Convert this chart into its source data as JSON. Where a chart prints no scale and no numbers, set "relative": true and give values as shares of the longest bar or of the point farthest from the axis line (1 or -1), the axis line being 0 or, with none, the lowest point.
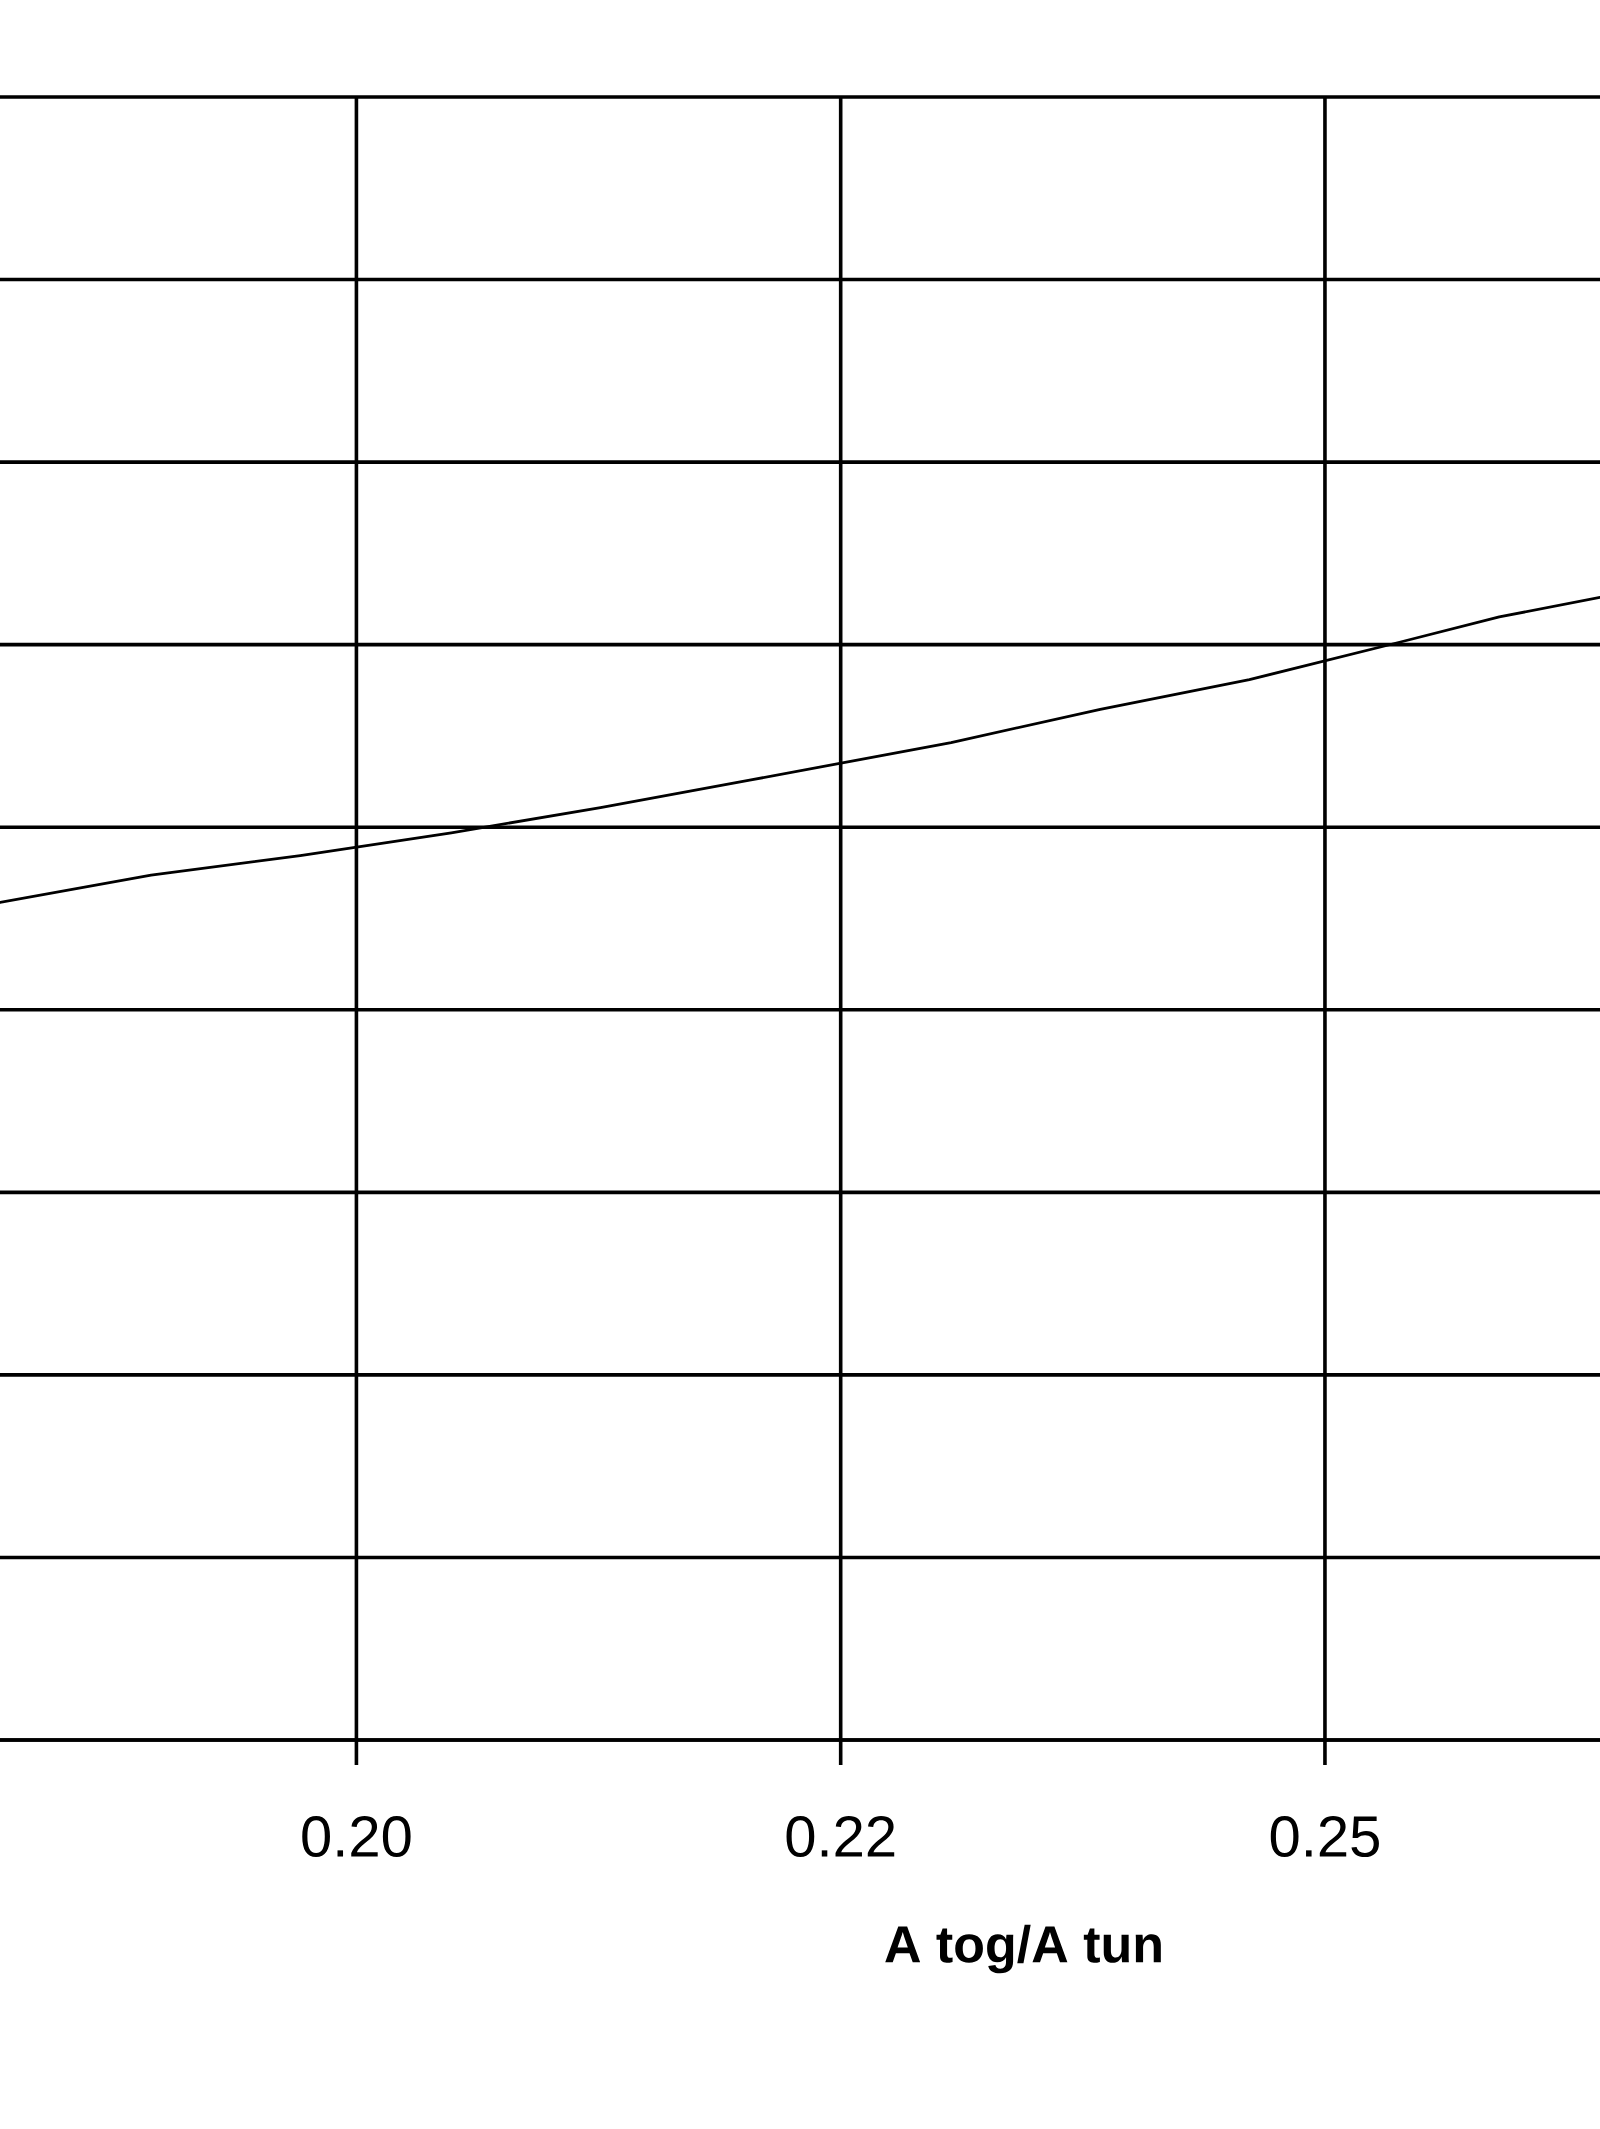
{
  "chart_data": {
    "type": "line",
    "relative": true,
    "xlabel": "A tog/A tun",
    "x": [
      0.1816,
      0.1894,
      0.1971,
      0.2049,
      0.2126,
      0.2203,
      0.2307,
      0.2384,
      0.2461,
      0.2539,
      0.259,
      0.2642
    ],
    "values": [
      0.733,
      0.757,
      0.774,
      0.794,
      0.816,
      0.84,
      0.873,
      0.902,
      0.928,
      0.961,
      0.983,
      1
    ],
    "color": "#000000",
    "xlim": [
      0.1816,
      0.2642
    ],
    "xticks": [
      {
        "value": 0.2,
        "label": "0.20"
      },
      {
        "value": 0.225,
        "label": "0.22"
      },
      0.25
    ],
    "grid": true
  }
}
